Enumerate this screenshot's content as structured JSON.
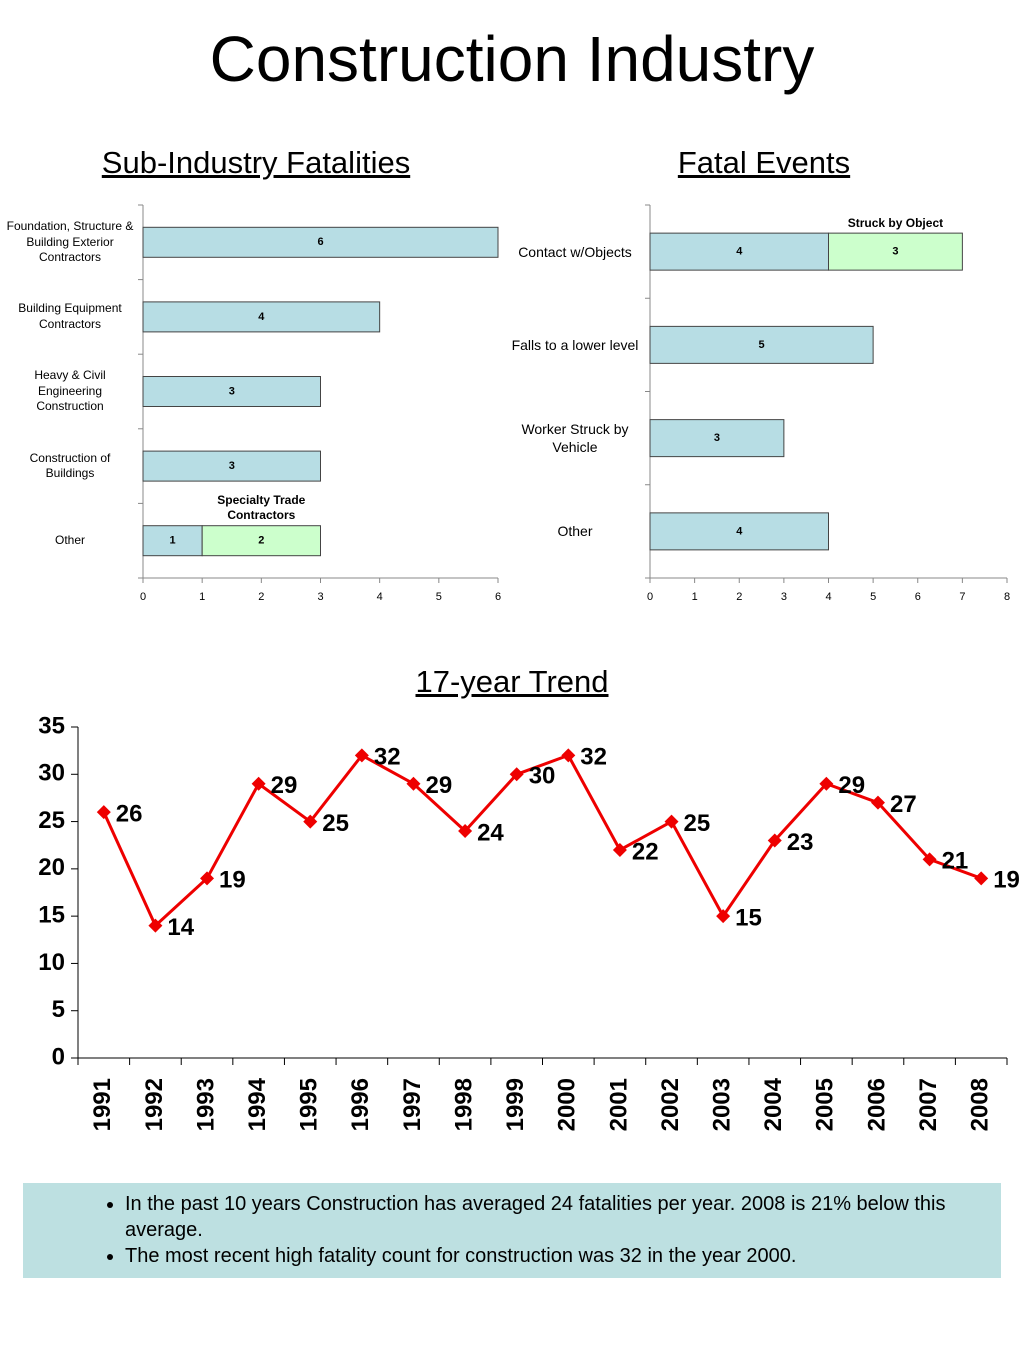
{
  "title": "Construction Industry",
  "chart_data": [
    {
      "type": "hbar",
      "title": "Sub-Industry Fatalities",
      "categories": [
        "Foundation, Structure & Building Exterior Contractors",
        "Building Equipment Contractors",
        "Heavy & Civil Engineering Construction",
        "Construction of Buildings",
        "Other"
      ],
      "series": [
        {
          "color": "#b7dde4",
          "values": [
            6,
            4,
            3,
            3,
            1
          ]
        },
        {
          "name": "Specialty Trade Contractors",
          "color": "#ccffcc",
          "values": [
            null,
            null,
            null,
            null,
            2
          ]
        }
      ],
      "xlim": [
        0,
        6
      ],
      "xticks": [
        0,
        1,
        2,
        3,
        4,
        5,
        6
      ]
    },
    {
      "type": "hbar",
      "title": "Fatal Events",
      "categories": [
        "Contact w/Objects",
        "Falls to a lower level",
        "Worker Struck by Vehicle",
        "Other"
      ],
      "series": [
        {
          "color": "#b7dde4",
          "values": [
            4,
            5,
            3,
            4
          ]
        },
        {
          "name": "Struck by Object",
          "color": "#ccffcc",
          "values": [
            3,
            null,
            null,
            null
          ]
        }
      ],
      "xlim": [
        0,
        8
      ],
      "xticks": [
        0,
        1,
        2,
        3,
        4,
        5,
        6,
        7,
        8
      ]
    },
    {
      "type": "line",
      "title": "17-year Trend",
      "categories": [
        "1991",
        "1992",
        "1993",
        "1994",
        "1995",
        "1996",
        "1997",
        "1998",
        "1999",
        "2000",
        "2001",
        "2002",
        "2003",
        "2004",
        "2005",
        "2006",
        "2007",
        "2008"
      ],
      "values": [
        26,
        14,
        19,
        29,
        25,
        32,
        29,
        24,
        30,
        32,
        22,
        25,
        15,
        23,
        29,
        27,
        21,
        19
      ],
      "color": "#ee0000",
      "ylim": [
        0,
        35
      ],
      "yticks": [
        0,
        5,
        10,
        15,
        20,
        25,
        30,
        35
      ]
    }
  ],
  "notes": [
    "In the past 10 years Construction has averaged 24 fatalities per year. 2008 is 21% below this average.",
    "The most recent high fatality count for construction was 32 in the year 2000."
  ]
}
